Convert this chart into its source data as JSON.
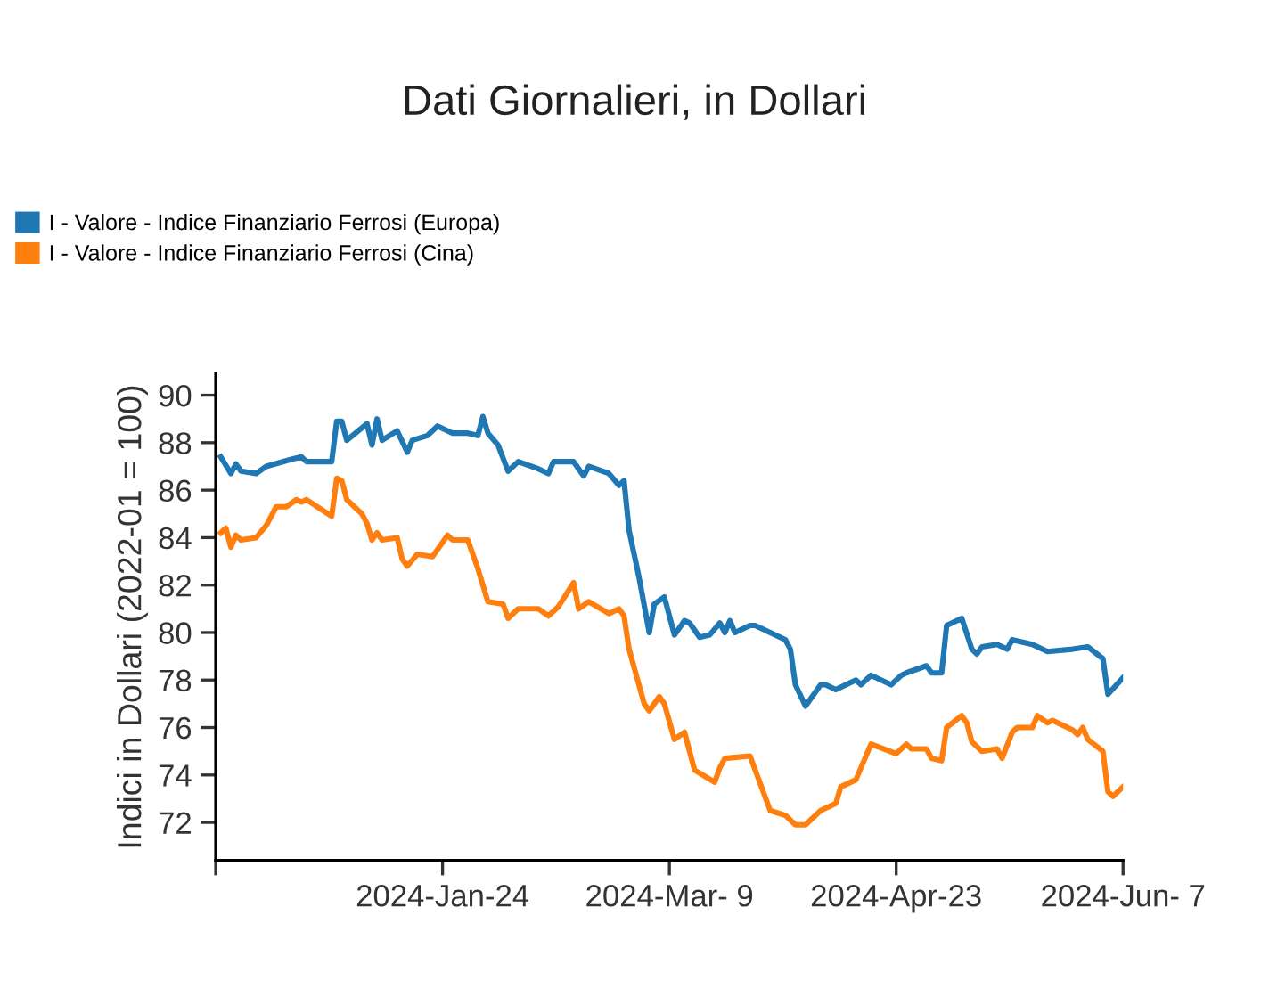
{
  "chart_data": {
    "type": "line",
    "title": "Dati Giornalieri, in Dollari",
    "ylabel": "Indici in Dollari (2022-01 = 100)",
    "xlim": [
      "2023-12-10",
      "2024-06-07"
    ],
    "xticks": [
      {
        "value": "2023-12-10",
        "label": null
      },
      {
        "value": "2024-01-24",
        "label": "2024-Jan-24"
      },
      {
        "value": "2024-03-09",
        "label": "2024-Mar- 9"
      },
      {
        "value": "2024-04-23",
        "label": "2024-Apr-23"
      },
      {
        "value": "2024-06-07",
        "label": "2024-Jun- 7"
      }
    ],
    "ylim": [
      70.4,
      90.9
    ],
    "yticks": [
      72,
      74,
      76,
      78,
      80,
      82,
      84,
      86,
      88,
      90
    ],
    "grid": false,
    "legend": "top left",
    "marker": "none",
    "line_style": "solid",
    "series": [
      {
        "name": "I - Valore - Indice Finanziario Ferrosi (Europa)",
        "color": "#1f77b4",
        "x": [
          "2023-12-11",
          "2023-12-13",
          "2023-12-14",
          "2023-12-15",
          "2023-12-18",
          "2023-12-20",
          "2023-12-25",
          "2023-12-27",
          "2023-12-28",
          "2024-01-02",
          "2024-01-03",
          "2024-01-04",
          "2024-01-05",
          "2024-01-09",
          "2024-01-10",
          "2024-01-11",
          "2024-01-12",
          "2024-01-15",
          "2024-01-17",
          "2024-01-18",
          "2024-01-21",
          "2024-01-23",
          "2024-01-26",
          "2024-01-29",
          "2024-01-31",
          "2024-02-01",
          "2024-02-02",
          "2024-02-04",
          "2024-02-06",
          "2024-02-08",
          "2024-02-12",
          "2024-02-14",
          "2024-02-15",
          "2024-02-19",
          "2024-02-21",
          "2024-02-22",
          "2024-02-26",
          "2024-02-28",
          "2024-02-29",
          "2024-03-01",
          "2024-03-03",
          "2024-03-05",
          "2024-03-06",
          "2024-03-08",
          "2024-03-10",
          "2024-03-12",
          "2024-03-13",
          "2024-03-15",
          "2024-03-17",
          "2024-03-19",
          "2024-03-20",
          "2024-03-21",
          "2024-03-22",
          "2024-03-25",
          "2024-03-26",
          "2024-04-01",
          "2024-04-02",
          "2024-04-03",
          "2024-04-05",
          "2024-04-08",
          "2024-04-09",
          "2024-04-11",
          "2024-04-15",
          "2024-04-16",
          "2024-04-18",
          "2024-04-22",
          "2024-04-24",
          "2024-04-25",
          "2024-04-29",
          "2024-04-30",
          "2024-05-02",
          "2024-05-03",
          "2024-05-06",
          "2024-05-08",
          "2024-05-09",
          "2024-05-10",
          "2024-05-13",
          "2024-05-15",
          "2024-05-16",
          "2024-05-20",
          "2024-05-23",
          "2024-05-28",
          "2024-05-31",
          "2024-06-03",
          "2024-06-04",
          "2024-06-07"
        ],
        "values": [
          87.4,
          86.7,
          87.1,
          86.8,
          86.7,
          87.0,
          87.3,
          87.4,
          87.2,
          87.2,
          88.9,
          88.9,
          88.1,
          88.8,
          87.9,
          89.0,
          88.1,
          88.5,
          87.6,
          88.1,
          88.3,
          88.7,
          88.4,
          88.4,
          88.3,
          89.1,
          88.4,
          87.9,
          86.8,
          87.2,
          86.9,
          86.7,
          87.2,
          87.2,
          86.6,
          87.0,
          86.7,
          86.2,
          86.4,
          84.3,
          82.3,
          80.0,
          81.2,
          81.5,
          79.9,
          80.5,
          80.4,
          79.8,
          79.9,
          80.4,
          80.0,
          80.5,
          80.0,
          80.3,
          80.3,
          79.7,
          79.3,
          77.8,
          76.9,
          77.8,
          77.8,
          77.6,
          78.0,
          77.8,
          78.2,
          77.8,
          78.2,
          78.3,
          78.6,
          78.3,
          78.3,
          80.3,
          80.6,
          79.3,
          79.1,
          79.4,
          79.5,
          79.3,
          79.7,
          79.5,
          79.2,
          79.3,
          79.4,
          78.9,
          77.4,
          78.1
        ]
      },
      {
        "name": "I - Valore - Indice Finanziario Ferrosi (Cina)",
        "color": "#ff7f0e",
        "x": [
          "2023-12-11",
          "2023-12-12",
          "2023-12-13",
          "2023-12-14",
          "2023-12-15",
          "2023-12-18",
          "2023-12-20",
          "2023-12-22",
          "2023-12-24",
          "2023-12-26",
          "2023-12-27",
          "2023-12-28",
          "2024-01-02",
          "2024-01-03",
          "2024-01-04",
          "2024-01-05",
          "2024-01-08",
          "2024-01-09",
          "2024-01-10",
          "2024-01-11",
          "2024-01-12",
          "2024-01-15",
          "2024-01-16",
          "2024-01-17",
          "2024-01-19",
          "2024-01-22",
          "2024-01-25",
          "2024-01-26",
          "2024-01-29",
          "2024-01-31",
          "2024-02-02",
          "2024-02-05",
          "2024-02-06",
          "2024-02-08",
          "2024-02-12",
          "2024-02-14",
          "2024-02-16",
          "2024-02-19",
          "2024-02-20",
          "2024-02-22",
          "2024-02-26",
          "2024-02-28",
          "2024-02-29",
          "2024-03-01",
          "2024-03-04",
          "2024-03-05",
          "2024-03-07",
          "2024-03-08",
          "2024-03-10",
          "2024-03-12",
          "2024-03-14",
          "2024-03-18",
          "2024-03-19",
          "2024-03-20",
          "2024-03-25",
          "2024-03-29",
          "2024-04-01",
          "2024-04-03",
          "2024-04-05",
          "2024-04-08",
          "2024-04-11",
          "2024-04-12",
          "2024-04-15",
          "2024-04-18",
          "2024-04-23",
          "2024-04-25",
          "2024-04-26",
          "2024-04-29",
          "2024-04-30",
          "2024-05-02",
          "2024-05-03",
          "2024-05-06",
          "2024-05-07",
          "2024-05-08",
          "2024-05-10",
          "2024-05-13",
          "2024-05-14",
          "2024-05-16",
          "2024-05-17",
          "2024-05-20",
          "2024-05-21",
          "2024-05-23",
          "2024-05-24",
          "2024-05-28",
          "2024-05-29",
          "2024-05-30",
          "2024-05-31",
          "2024-06-03",
          "2024-06-04",
          "2024-06-05",
          "2024-06-07"
        ],
        "values": [
          84.2,
          84.4,
          83.6,
          84.1,
          83.9,
          84.0,
          84.5,
          85.3,
          85.3,
          85.6,
          85.5,
          85.6,
          84.9,
          86.5,
          86.4,
          85.6,
          85.0,
          84.6,
          83.9,
          84.2,
          83.9,
          84.0,
          83.1,
          82.8,
          83.3,
          83.2,
          84.1,
          83.9,
          83.9,
          82.7,
          81.3,
          81.2,
          80.6,
          81.0,
          81.0,
          80.7,
          81.1,
          82.1,
          81.0,
          81.3,
          80.8,
          81.0,
          80.7,
          79.3,
          77.0,
          76.7,
          77.3,
          77.0,
          75.5,
          75.8,
          74.2,
          73.7,
          74.3,
          74.7,
          74.8,
          72.5,
          72.3,
          71.9,
          71.9,
          72.5,
          72.8,
          73.5,
          73.8,
          75.3,
          74.9,
          75.3,
          75.1,
          75.1,
          74.7,
          74.6,
          76.0,
          76.5,
          76.2,
          75.4,
          75.0,
          75.1,
          74.7,
          75.8,
          76.0,
          76.0,
          76.5,
          76.2,
          76.3,
          75.9,
          75.7,
          76.0,
          75.5,
          75.0,
          73.3,
          73.1,
          73.5
        ]
      }
    ]
  }
}
